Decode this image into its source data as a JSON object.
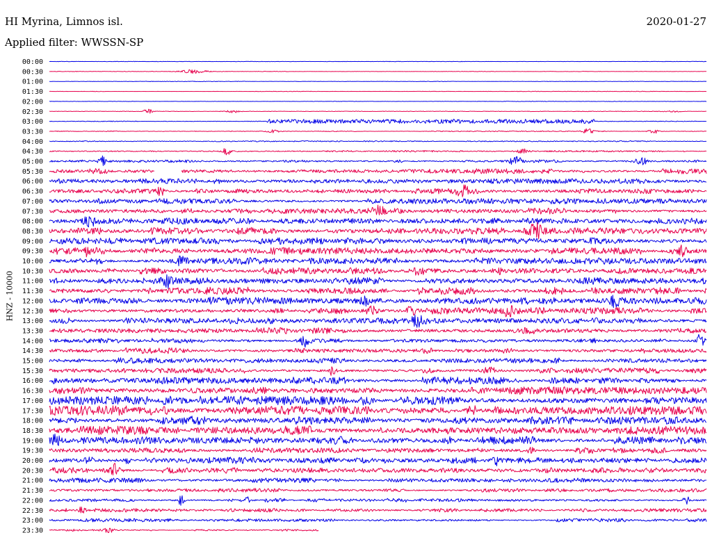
{
  "header": {
    "station": "HI Myrina, Limnos isl.",
    "date": "2020-01-27",
    "filter": "Applied filter: WWSSN-SP"
  },
  "chart_data": {
    "type": "line",
    "title": "HI Myrina, Limnos isl.",
    "ylabel": "HNZ - 10000",
    "grid": false,
    "legend": "none",
    "series_colors": [
      "#0000e6",
      "#e6004c"
    ],
    "rows": [
      {
        "label": "00:00",
        "amp": 0.2,
        "seed": 1
      },
      {
        "label": "00:30",
        "amp": 0.2,
        "seed": 2,
        "bursts": [
          {
            "x": 0.22,
            "w": 0.02,
            "a": 3
          }
        ]
      },
      {
        "label": "01:00",
        "amp": 0.2,
        "seed": 3
      },
      {
        "label": "01:30",
        "amp": 0.2,
        "seed": 4
      },
      {
        "label": "02:00",
        "amp": 0.2,
        "seed": 5
      },
      {
        "label": "02:30",
        "amp": 0.25,
        "seed": 6,
        "bursts": [
          {
            "x": 0.15,
            "w": 0.006,
            "a": 4
          },
          {
            "x": 0.28,
            "w": 0.01,
            "a": 2
          },
          {
            "x": 0.95,
            "w": 0.01,
            "a": 1.5
          }
        ]
      },
      {
        "label": "03:00",
        "amp": 0.3,
        "seed": 7,
        "band": [
          0.33,
          0.83,
          3
        ]
      },
      {
        "label": "03:30",
        "amp": 0.4,
        "seed": 8,
        "bursts": [
          {
            "x": 0.34,
            "w": 0.01,
            "a": 2
          },
          {
            "x": 0.82,
            "w": 0.008,
            "a": 4
          },
          {
            "x": 0.92,
            "w": 0.008,
            "a": 3
          }
        ]
      },
      {
        "label": "04:00",
        "amp": 0.5,
        "seed": 9
      },
      {
        "label": "04:30",
        "amp": 0.7,
        "seed": 10,
        "bursts": [
          {
            "x": 0.27,
            "w": 0.005,
            "a": 6
          },
          {
            "x": 0.72,
            "w": 0.01,
            "a": 3
          }
        ]
      },
      {
        "label": "05:00",
        "amp": 1.2,
        "seed": 11,
        "bursts": [
          {
            "x": 0.08,
            "w": 0.005,
            "a": 8
          },
          {
            "x": 0.71,
            "w": 0.01,
            "a": 6
          },
          {
            "x": 0.9,
            "w": 0.01,
            "a": 5
          }
        ]
      },
      {
        "label": "05:30",
        "amp": 2.2,
        "seed": 12,
        "gap": [
          0.16,
          0.2
        ]
      },
      {
        "label": "06:00",
        "amp": 2.2,
        "seed": 13
      },
      {
        "label": "06:30",
        "amp": 2.4,
        "seed": 14,
        "bursts": [
          {
            "x": 0.17,
            "w": 0.005,
            "a": 7
          },
          {
            "x": 0.63,
            "w": 0.01,
            "a": 6
          }
        ]
      },
      {
        "label": "07:00",
        "amp": 2.6,
        "seed": 15
      },
      {
        "label": "07:30",
        "amp": 2.6,
        "seed": 16,
        "bursts": [
          {
            "x": 0.5,
            "w": 0.01,
            "a": 6
          }
        ]
      },
      {
        "label": "08:00",
        "amp": 2.8,
        "seed": 17,
        "bursts": [
          {
            "x": 0.06,
            "w": 0.01,
            "a": 6
          }
        ]
      },
      {
        "label": "08:30",
        "amp": 3.0,
        "seed": 18,
        "bursts": [
          {
            "x": 0.74,
            "w": 0.01,
            "a": 9
          }
        ]
      },
      {
        "label": "09:00",
        "amp": 2.8,
        "seed": 19
      },
      {
        "label": "09:30",
        "amp": 3.0,
        "seed": 20,
        "bursts": [
          {
            "x": 0.06,
            "w": 0.005,
            "a": 7
          },
          {
            "x": 0.96,
            "w": 0.01,
            "a": 7
          }
        ]
      },
      {
        "label": "10:00",
        "amp": 3.0,
        "seed": 21,
        "bursts": [
          {
            "x": 0.2,
            "w": 0.006,
            "a": 7
          }
        ]
      },
      {
        "label": "10:30",
        "amp": 3.0,
        "seed": 22,
        "bursts": [
          {
            "x": 0.56,
            "w": 0.01,
            "a": 6
          },
          {
            "x": 0.69,
            "w": 0.005,
            "a": 7
          }
        ]
      },
      {
        "label": "11:00",
        "amp": 3.0,
        "seed": 23,
        "bursts": [
          {
            "x": 0.18,
            "w": 0.005,
            "a": 7
          }
        ]
      },
      {
        "label": "11:30",
        "amp": 3.0,
        "seed": 24
      },
      {
        "label": "12:00",
        "amp": 3.0,
        "seed": 25,
        "bursts": [
          {
            "x": 0.48,
            "w": 0.01,
            "a": 6
          },
          {
            "x": 0.86,
            "w": 0.008,
            "a": 6
          }
        ]
      },
      {
        "label": "12:30",
        "amp": 2.8,
        "seed": 26,
        "bursts": [
          {
            "x": 0.49,
            "w": 0.01,
            "a": 6
          },
          {
            "x": 0.55,
            "w": 0.006,
            "a": 7
          },
          {
            "x": 0.7,
            "w": 0.01,
            "a": 6
          }
        ]
      },
      {
        "label": "13:00",
        "amp": 2.6,
        "seed": 27,
        "bursts": [
          {
            "x": 0.56,
            "w": 0.008,
            "a": 6
          }
        ]
      },
      {
        "label": "13:30",
        "amp": 2.6,
        "seed": 28,
        "bursts": [
          {
            "x": 0.73,
            "w": 0.006,
            "a": 6
          }
        ]
      },
      {
        "label": "14:00",
        "amp": 2.4,
        "seed": 29,
        "bursts": [
          {
            "x": 0.39,
            "w": 0.006,
            "a": 7
          },
          {
            "x": 0.99,
            "w": 0.005,
            "a": 7
          }
        ]
      },
      {
        "label": "14:30",
        "amp": 2.4,
        "seed": 30
      },
      {
        "label": "15:00",
        "amp": 2.4,
        "seed": 31
      },
      {
        "label": "15:30",
        "amp": 2.6,
        "seed": 32,
        "bursts": [
          {
            "x": 0.43,
            "w": 0.006,
            "a": 6
          },
          {
            "x": 0.67,
            "w": 0.01,
            "a": 5
          }
        ]
      },
      {
        "label": "16:00",
        "amp": 3.0,
        "seed": 33
      },
      {
        "label": "16:30",
        "amp": 3.2,
        "seed": 34,
        "band": [
          0.7,
          1.0,
          5
        ]
      },
      {
        "label": "17:00",
        "amp": 4.0,
        "seed": 35,
        "band": [
          0.0,
          0.15,
          6
        ]
      },
      {
        "label": "17:30",
        "amp": 4.0,
        "seed": 36,
        "band": [
          0.0,
          0.12,
          7
        ]
      },
      {
        "label": "18:00",
        "amp": 3.6,
        "seed": 37
      },
      {
        "label": "18:30",
        "amp": 3.6,
        "seed": 38
      },
      {
        "label": "19:00",
        "amp": 3.2,
        "seed": 39,
        "bursts": [
          {
            "x": 0.01,
            "w": 0.008,
            "a": 7
          },
          {
            "x": 0.44,
            "w": 0.004,
            "a": 6
          }
        ]
      },
      {
        "label": "19:30",
        "amp": 2.6,
        "seed": 40
      },
      {
        "label": "20:00",
        "amp": 2.8,
        "seed": 41,
        "bursts": [
          {
            "x": 0.12,
            "w": 0.004,
            "a": 6
          },
          {
            "x": 0.68,
            "w": 0.004,
            "a": 7
          }
        ]
      },
      {
        "label": "20:30",
        "amp": 2.6,
        "seed": 42,
        "bursts": [
          {
            "x": 0.1,
            "w": 0.006,
            "a": 7
          }
        ]
      },
      {
        "label": "21:00",
        "amp": 2.0,
        "seed": 43
      },
      {
        "label": "21:30",
        "amp": 1.6,
        "seed": 44
      },
      {
        "label": "22:00",
        "amp": 1.6,
        "seed": 45,
        "bursts": [
          {
            "x": 0.2,
            "w": 0.005,
            "a": 7
          },
          {
            "x": 0.3,
            "w": 0.005,
            "a": 5
          },
          {
            "x": 0.97,
            "w": 0.006,
            "a": 6
          }
        ]
      },
      {
        "label": "22:30",
        "amp": 1.6,
        "seed": 46,
        "bursts": [
          {
            "x": 0.05,
            "w": 0.005,
            "a": 6
          }
        ]
      },
      {
        "label": "23:00",
        "amp": 1.4,
        "seed": 47
      },
      {
        "label": "23:30",
        "amp": 0.9,
        "seed": 48,
        "bursts": [
          {
            "x": 0.09,
            "w": 0.008,
            "a": 4
          }
        ],
        "end": 0.41
      }
    ]
  }
}
